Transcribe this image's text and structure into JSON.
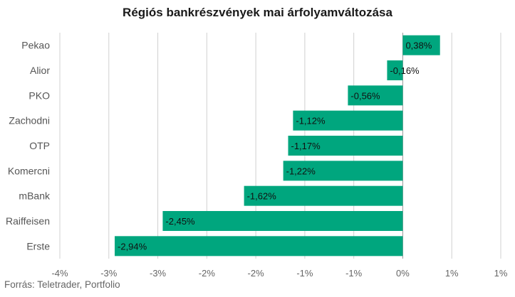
{
  "chart_data": {
    "type": "bar",
    "orientation": "horizontal",
    "title": "Régiós bankrészvények mai árfolyamváltozása",
    "source": "Forrás: Teletrader, Portfolio",
    "categories": [
      "Pekao",
      "Alior",
      "PKO",
      "Zachodni",
      "OTP",
      "Komercni",
      "mBank",
      "Raiffeisen",
      "Erste"
    ],
    "values": [
      0.38,
      -0.16,
      -0.56,
      -1.12,
      -1.17,
      -1.22,
      -1.62,
      -2.45,
      -2.94
    ],
    "data_labels": [
      "0,38%",
      "-0,16%",
      "-0,56%",
      "-1,12%",
      "-1,17%",
      "-1,22%",
      "-1,62%",
      "-2,45%",
      "-2,94%"
    ],
    "x_ticks": [
      -3.5,
      -3.0,
      -2.5,
      -2.0,
      -1.5,
      -1.0,
      -0.5,
      0.0,
      0.5,
      1.0
    ],
    "x_tick_labels": [
      "-4%",
      "-3%",
      "-3%",
      "-2%",
      "-2%",
      "-1%",
      "-1%",
      "0%",
      "1%",
      "1%"
    ],
    "xlim": [
      -3.5,
      1.0
    ],
    "grid": true,
    "legend": "none",
    "bar_color": "#00a67e",
    "grid_color": "#d0d0d0",
    "zero_line_color": "#999999"
  }
}
